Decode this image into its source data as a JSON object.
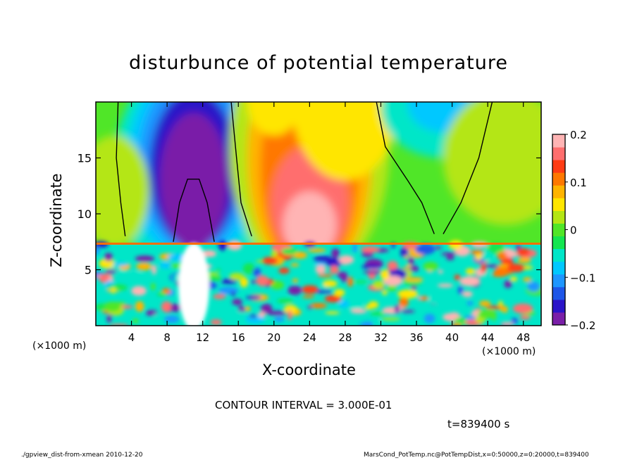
{
  "chart_data": {
    "type": "heatmap",
    "title": "disturbunce of potential temperature",
    "xlabel": "X-coordinate",
    "ylabel": "Z-coordinate",
    "x_unit": "(×1000 m)",
    "xlim": [
      0,
      50
    ],
    "ylim": [
      0,
      20
    ],
    "x_ticks": [
      4,
      8,
      12,
      16,
      20,
      24,
      28,
      32,
      36,
      40,
      44,
      48
    ],
    "y_ticks": [
      5,
      10,
      15
    ],
    "colorbar": {
      "range": [
        -0.2,
        0.2
      ],
      "ticks": [
        {
          "value": 0.2,
          "label": "0.2"
        },
        {
          "value": 0.1,
          "label": "0.1"
        },
        {
          "value": 0,
          "label": "0"
        },
        {
          "value": -0.1,
          "label": "−0.1"
        },
        {
          "value": -0.2,
          "label": "−0.2"
        }
      ],
      "colors": [
        "#7a1fa8",
        "#2a14c8",
        "#1e56e8",
        "#1e96ff",
        "#00c8ff",
        "#00e6c8",
        "#14e650",
        "#50e628",
        "#b4e614",
        "#ffe600",
        "#ffb400",
        "#ff7800",
        "#ff3c14",
        "#ff6e6e",
        "#ffb4b4"
      ]
    },
    "features": [
      {
        "label": "negative anomaly column",
        "x": 11,
        "z_range": [
          10,
          17
        ],
        "value": -0.2
      },
      {
        "label": "positive anomaly column",
        "x": 24,
        "z_range": [
          8,
          20
        ],
        "value": 0.15
      },
      {
        "label": "negative anomaly",
        "x": 38,
        "z_range": [
          17,
          20
        ],
        "value": -0.12
      },
      {
        "label": "inversion layer",
        "z": 7.3
      }
    ],
    "contour_interval": "CONTOUR INTERVAL = 3.000E-01"
  },
  "time_label": "t=839400 s",
  "footer_left": "./gpview_dist-from-xmean   2010-12-20",
  "footer_right": "MarsCond_PotTemp.nc@PotTempDist,x=0:50000,z=0:20000,t=839400"
}
